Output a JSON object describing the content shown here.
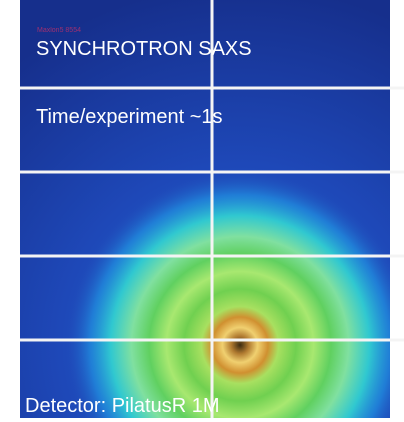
{
  "watermark": "Maxlon5 8554",
  "title": "SYNCHROTRON SAXS",
  "time_label": "Time/experiment ~1s",
  "detector_label": "Detector: PilatusR 1M"
}
